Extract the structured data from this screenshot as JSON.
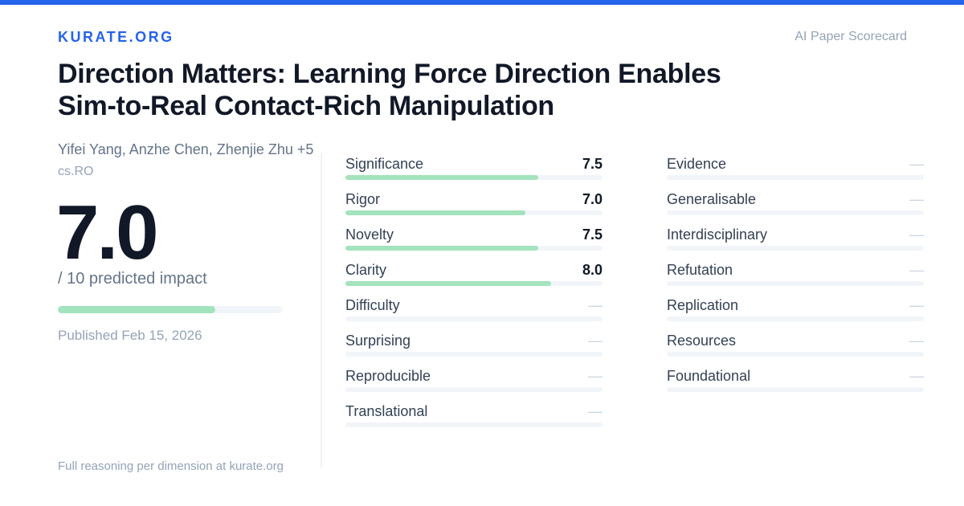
{
  "brand": "KURATE.ORG",
  "tagline": "AI Paper Scorecard",
  "paper": {
    "title": "Direction Matters: Learning Force Direction Enables Sim-to-Real Contact-Rich Manipulation",
    "authors": "Yifei Yang, Anzhe Chen, Zhenjie Zhu +5",
    "category": "cs.RO",
    "published": "Published Feb 15, 2026"
  },
  "score": {
    "value": "7.0",
    "label": "/ 10 predicted impact",
    "fraction": 0.7
  },
  "footer": "Full reasoning per dimension at kurate.org",
  "colors": {
    "accent": "#2563eb",
    "bar_fill": "#a3e3bd",
    "bar_track": "#f1f5f9"
  },
  "dimensions_left": [
    {
      "label": "Significance",
      "value": "7.5",
      "fraction": 0.75
    },
    {
      "label": "Rigor",
      "value": "7.0",
      "fraction": 0.7
    },
    {
      "label": "Novelty",
      "value": "7.5",
      "fraction": 0.75
    },
    {
      "label": "Clarity",
      "value": "8.0",
      "fraction": 0.8
    },
    {
      "label": "Difficulty",
      "value": "—",
      "fraction": 0
    },
    {
      "label": "Surprising",
      "value": "—",
      "fraction": 0
    },
    {
      "label": "Reproducible",
      "value": "—",
      "fraction": 0
    },
    {
      "label": "Translational",
      "value": "—",
      "fraction": 0
    }
  ],
  "dimensions_right": [
    {
      "label": "Evidence",
      "value": "—",
      "fraction": 0
    },
    {
      "label": "Generalisable",
      "value": "—",
      "fraction": 0
    },
    {
      "label": "Interdisciplinary",
      "value": "—",
      "fraction": 0
    },
    {
      "label": "Refutation",
      "value": "—",
      "fraction": 0
    },
    {
      "label": "Replication",
      "value": "—",
      "fraction": 0
    },
    {
      "label": "Resources",
      "value": "—",
      "fraction": 0
    },
    {
      "label": "Foundational",
      "value": "—",
      "fraction": 0
    }
  ]
}
